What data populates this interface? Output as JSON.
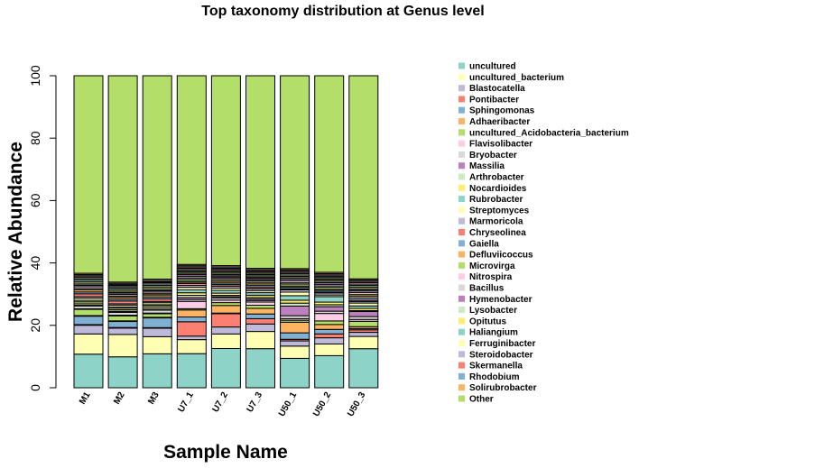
{
  "chart_data": {
    "type": "bar",
    "stacked": true,
    "title": "Top taxonomy distribution at Genus level",
    "xlabel": "Sample Name",
    "ylabel": "Relative Abundance",
    "ylim": [
      0,
      100
    ],
    "yticks": [
      0,
      20,
      40,
      60,
      80,
      100
    ],
    "legend_position": "right",
    "categories": [
      "M1",
      "M2",
      "M3",
      "U7_1",
      "U7_2",
      "U7_3",
      "U50_1",
      "U50_2",
      "U50_3"
    ],
    "series": [
      {
        "name": "uncultured",
        "color": "#8DD3C7",
        "values": [
          10.8,
          9.8,
          10.5,
          10.7,
          12.4,
          12.5,
          9.1,
          9.9,
          12.4
        ]
      },
      {
        "name": "uncultured_bacterium",
        "color": "#FFFFB3",
        "values": [
          6.5,
          7.1,
          5.3,
          4.4,
          4.6,
          5.5,
          3.8,
          3.6,
          3.9
        ]
      },
      {
        "name": "Blastocatella",
        "color": "#BEBADA",
        "values": [
          2.8,
          2.0,
          2.6,
          1.1,
          2.2,
          2.4,
          1.6,
          1.9,
          1.3
        ]
      },
      {
        "name": "Pontibacter",
        "color": "#FB8072",
        "values": [
          0.2,
          0.2,
          0.2,
          4.5,
          4.2,
          1.7,
          0.5,
          1.2,
          0.8
        ]
      },
      {
        "name": "Sphingomonas",
        "color": "#80B1D3",
        "values": [
          2.7,
          1.9,
          3.0,
          1.5,
          0.2,
          1.5,
          2.0,
          1.4,
          0.4
        ]
      },
      {
        "name": "Adhaeribacter",
        "color": "#FDB462",
        "values": [
          0.2,
          0.2,
          0.2,
          2.2,
          2.4,
          1.8,
          3.3,
          1.5,
          0.6
        ]
      },
      {
        "name": "uncultured_Acidobacteria_bacterium",
        "color": "#B3DE69",
        "values": [
          2.0,
          1.6,
          1.1,
          0.4,
          0.9,
          1.0,
          0.6,
          1.1,
          1.7
        ]
      },
      {
        "name": "Flavisolibacter",
        "color": "#FCCDE5",
        "values": [
          0.2,
          0.2,
          0.2,
          2.3,
          0.8,
          1.0,
          0.5,
          2.3,
          0.6
        ]
      },
      {
        "name": "Bryobacter",
        "color": "#D9D9D9",
        "values": [
          0.9,
          0.9,
          0.9,
          0.6,
          0.7,
          0.5,
          0.9,
          0.7,
          0.9
        ]
      },
      {
        "name": "Massilia",
        "color": "#BC80BD",
        "values": [
          0.2,
          0.3,
          0.2,
          0.6,
          0.4,
          0.5,
          3.0,
          1.4,
          1.6
        ]
      },
      {
        "name": "Arthrobacter",
        "color": "#CCEBC5",
        "values": [
          0.5,
          0.5,
          0.5,
          0.7,
          0.4,
          0.5,
          0.9,
          0.6,
          0.3
        ]
      },
      {
        "name": "Nocardioides",
        "color": "#FFED6F",
        "values": [
          0.6,
          0.5,
          0.6,
          0.8,
          0.7,
          0.7,
          0.9,
          0.8,
          0.7
        ]
      },
      {
        "name": "Rubrobacter",
        "color": "#8DD3C7",
        "values": [
          0.5,
          0.4,
          0.4,
          0.9,
          0.9,
          0.8,
          1.4,
          1.7,
          0.8
        ]
      },
      {
        "name": "Streptomyces",
        "color": "#FFFFB3",
        "values": [
          0.7,
          0.6,
          0.6,
          0.8,
          0.7,
          0.6,
          1.1,
          0.5,
          0.9
        ]
      },
      {
        "name": "Marmoricola",
        "color": "#BEBADA",
        "values": [
          0.5,
          0.4,
          0.4,
          0.6,
          0.6,
          0.6,
          0.7,
          0.6,
          0.5
        ]
      },
      {
        "name": "Chryseolinea",
        "color": "#FB8072",
        "values": [
          0.9,
          0.9,
          0.8,
          0.6,
          0.5,
          0.5,
          0.3,
          0.3,
          0.4
        ]
      },
      {
        "name": "Gaiella",
        "color": "#80B1D3",
        "values": [
          0.6,
          0.6,
          0.6,
          0.4,
          0.5,
          0.6,
          0.5,
          0.5,
          0.7
        ]
      },
      {
        "name": "Defluviicoccus",
        "color": "#FDB462",
        "values": [
          0.7,
          0.6,
          0.6,
          0.4,
          0.5,
          0.5,
          0.4,
          0.4,
          0.6
        ]
      },
      {
        "name": "Microvirga",
        "color": "#B3DE69",
        "values": [
          0.4,
          0.4,
          0.4,
          0.6,
          0.5,
          0.5,
          0.6,
          0.6,
          0.5
        ]
      },
      {
        "name": "Nitrospira",
        "color": "#FCCDE5",
        "values": [
          0.6,
          0.5,
          0.5,
          0.4,
          0.5,
          0.5,
          0.4,
          0.4,
          0.6
        ]
      },
      {
        "name": "Bacillus",
        "color": "#D9D9D9",
        "values": [
          0.4,
          0.4,
          0.4,
          0.5,
          0.4,
          0.4,
          0.6,
          0.5,
          0.5
        ]
      },
      {
        "name": "Hymenobacter",
        "color": "#BC80BD",
        "values": [
          0.2,
          0.2,
          0.2,
          0.5,
          0.4,
          0.4,
          0.6,
          0.5,
          0.4
        ]
      },
      {
        "name": "Lysobacter",
        "color": "#CCEBC5",
        "values": [
          0.5,
          0.4,
          0.5,
          0.4,
          0.4,
          0.4,
          0.4,
          0.4,
          0.4
        ]
      },
      {
        "name": "Opitutus",
        "color": "#FFED6F",
        "values": [
          0.5,
          0.5,
          0.5,
          0.4,
          0.4,
          0.4,
          0.4,
          0.4,
          0.5
        ]
      },
      {
        "name": "Haliangium",
        "color": "#8DD3C7",
        "values": [
          0.6,
          0.5,
          0.5,
          0.4,
          0.4,
          0.4,
          0.4,
          0.4,
          0.5
        ]
      },
      {
        "name": "Ferruginibacter",
        "color": "#FFFFB3",
        "values": [
          0.4,
          0.4,
          0.4,
          0.4,
          0.4,
          0.4,
          0.4,
          0.4,
          0.4
        ]
      },
      {
        "name": "Steroidobacter",
        "color": "#BEBADA",
        "values": [
          0.5,
          0.4,
          0.4,
          0.4,
          0.4,
          0.4,
          0.4,
          0.4,
          0.5
        ]
      },
      {
        "name": "Skermanella",
        "color": "#FB8072",
        "values": [
          0.4,
          0.3,
          0.3,
          0.4,
          0.4,
          0.4,
          0.4,
          0.4,
          0.4
        ]
      },
      {
        "name": "Rhodobium",
        "color": "#80B1D3",
        "values": [
          0.4,
          0.4,
          0.4,
          0.4,
          0.4,
          0.4,
          0.4,
          0.4,
          0.4
        ]
      },
      {
        "name": "Solirubrobacter",
        "color": "#FDB462",
        "values": [
          0.4,
          0.4,
          0.4,
          0.4,
          0.4,
          0.4,
          0.4,
          0.4,
          0.4
        ]
      },
      {
        "name": "Other",
        "color": "#B3DE69",
        "values": [
          63.5,
          65.4,
          62.9,
          59.2,
          60.0,
          61.6,
          59.7,
          60.6,
          64.5
        ]
      }
    ]
  }
}
